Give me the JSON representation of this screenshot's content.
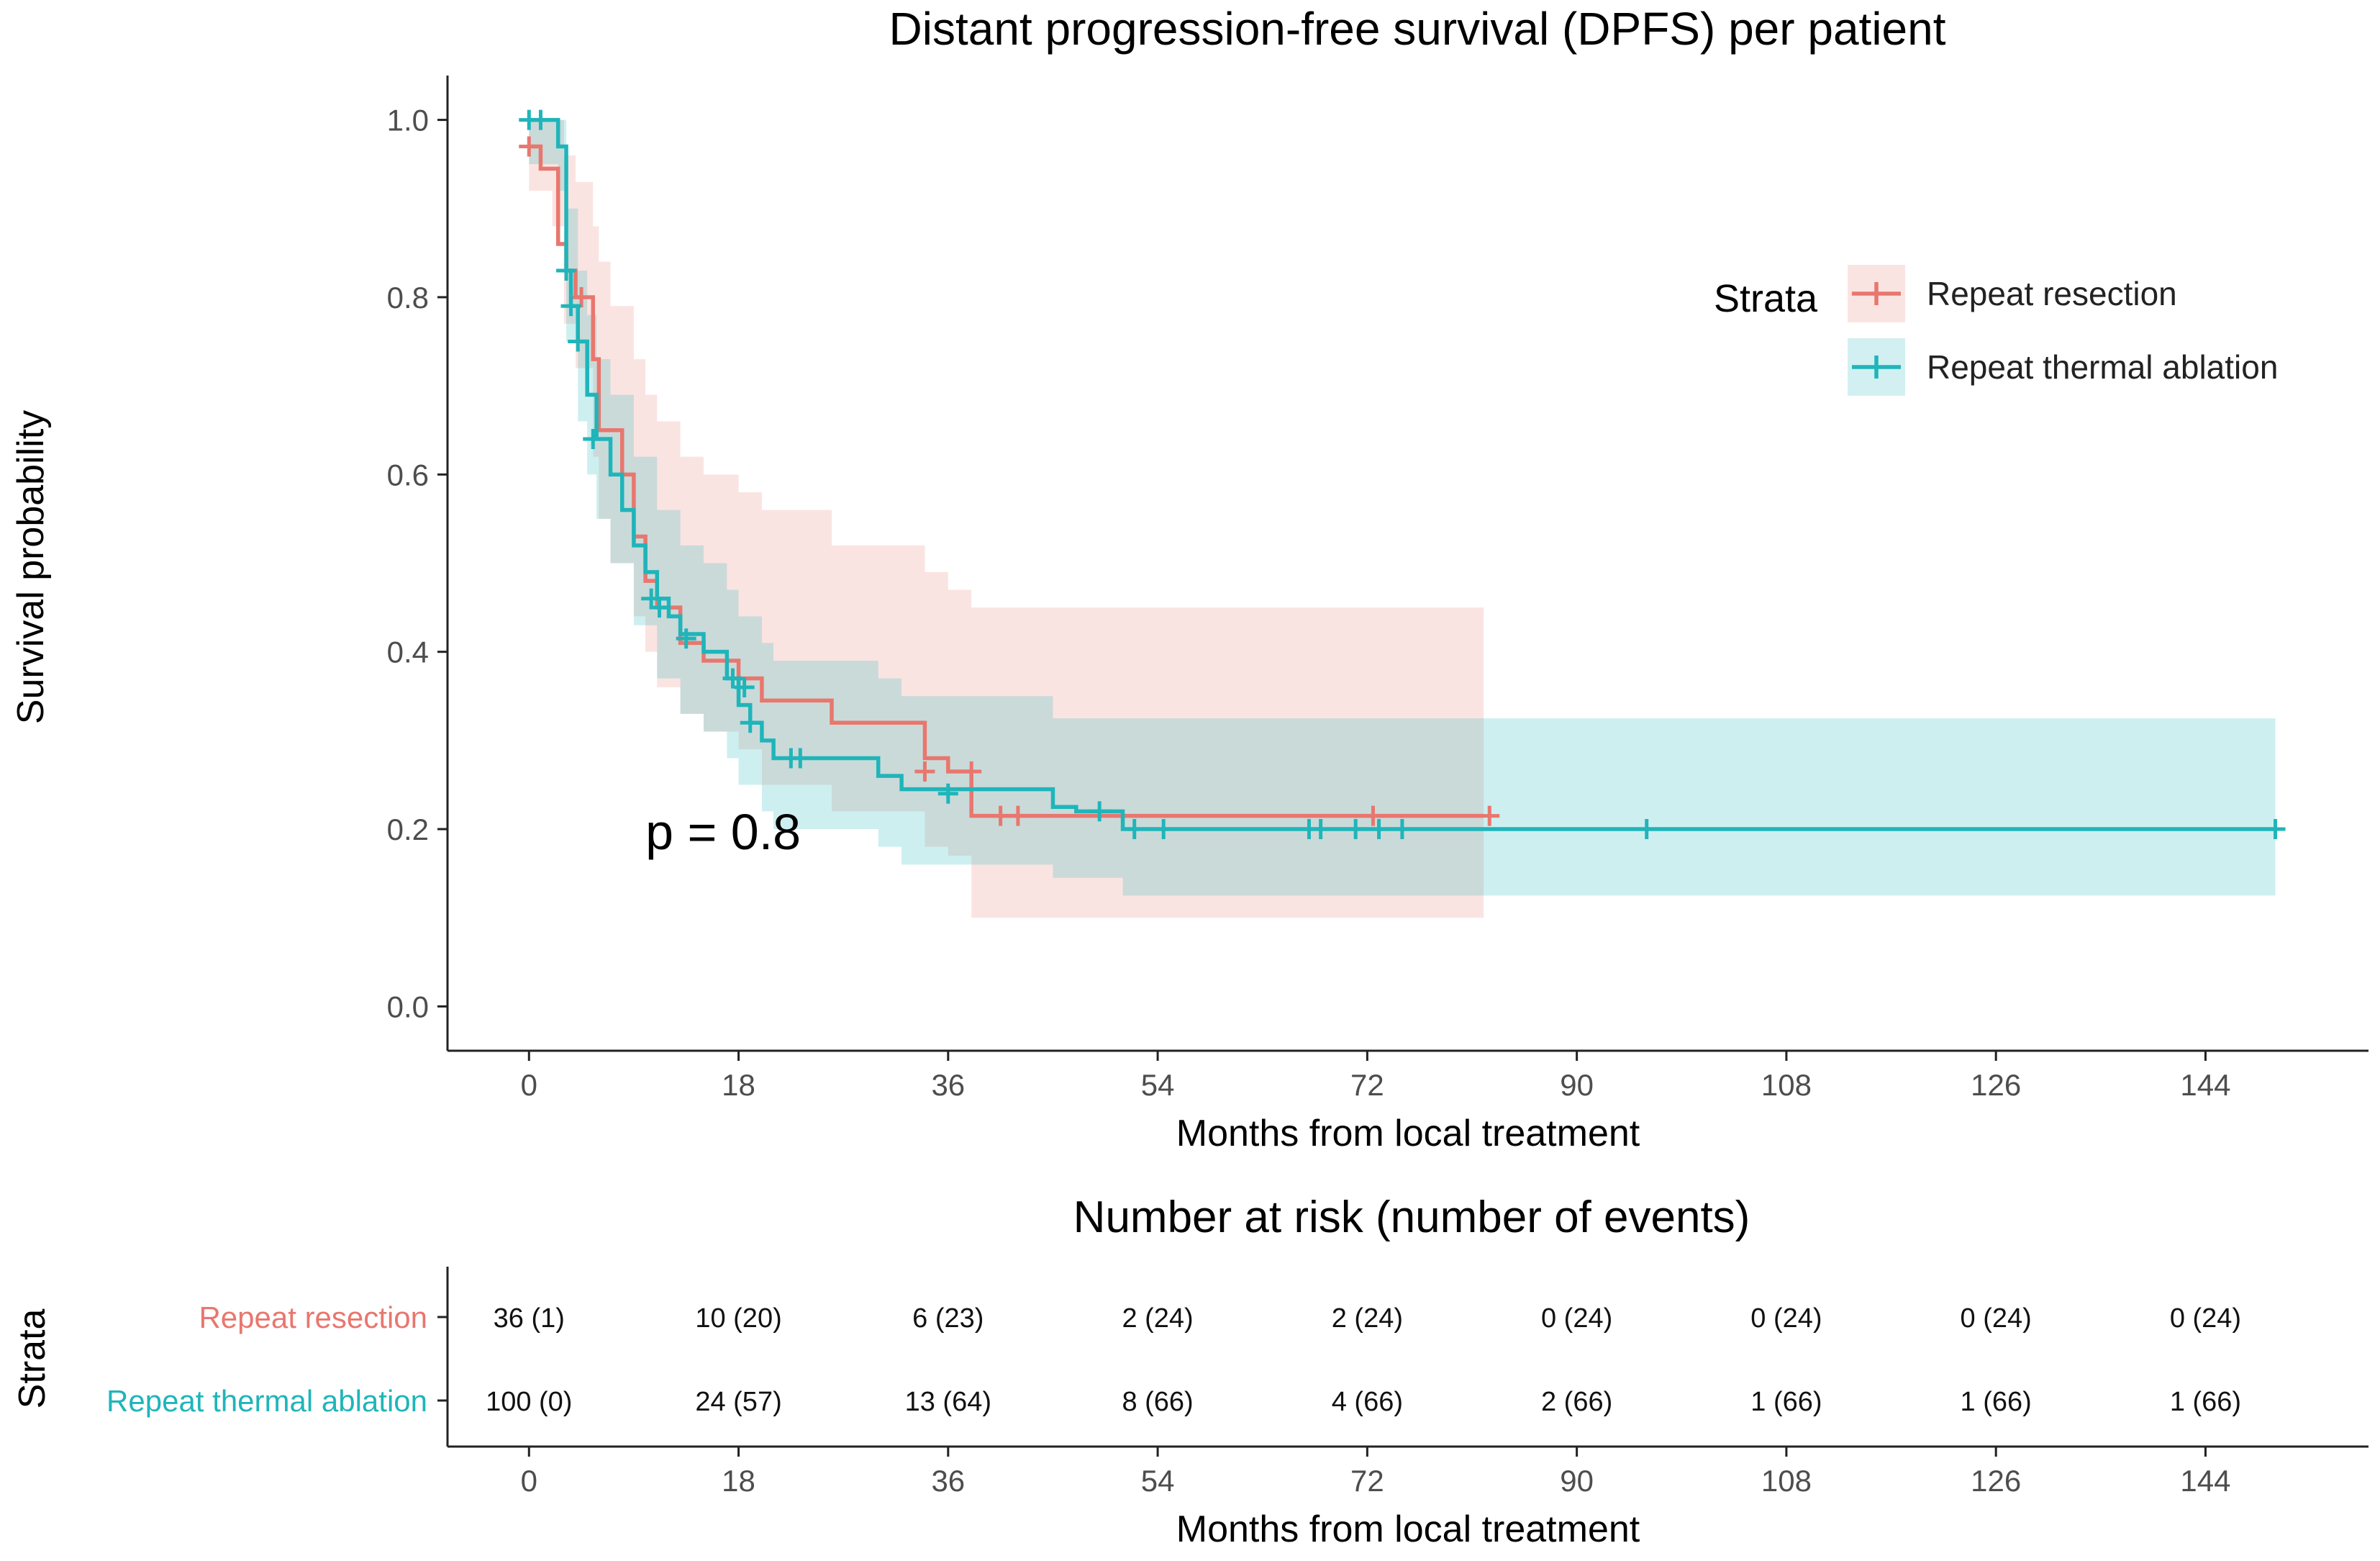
{
  "colors": {
    "resection": "#E8776E",
    "ablation": "#1FB5BA",
    "resection_band": "#FDE3E1",
    "ablation_band": "#CDEFF0",
    "axis": "#222222",
    "tick_label": "#4d4d4d"
  },
  "chart_data": [
    {
      "type": "line",
      "title": "Distant progression-free survival (DPFS) per patient",
      "xlabel": "Months from local treatment",
      "ylabel": "Survival probability",
      "xlim": [
        -7,
        158
      ],
      "ylim": [
        -0.05,
        1.05
      ],
      "xticks": [
        0,
        18,
        36,
        54,
        72,
        90,
        108,
        126,
        144
      ],
      "yticks": [
        0.0,
        0.2,
        0.4,
        0.6,
        0.8,
        1.0
      ],
      "ytick_labels": [
        "0.0",
        "0.2",
        "0.4",
        "0.6",
        "0.8",
        "1.0"
      ],
      "annotation": "p = 0.8",
      "annotation_pos": [
        10,
        0.2
      ],
      "legend": {
        "title": "Strata",
        "position": "top-right",
        "entries": [
          "Repeat resection",
          "Repeat thermal ablation"
        ]
      },
      "series": [
        {
          "name": "Repeat resection",
          "color_key": "resection",
          "steps": [
            [
              0,
              0.97
            ],
            [
              1,
              0.97
            ],
            [
              1,
              0.945
            ],
            [
              2.5,
              0.945
            ],
            [
              2.5,
              0.86
            ],
            [
              3.2,
              0.86
            ],
            [
              3.2,
              0.83
            ],
            [
              4,
              0.83
            ],
            [
              4,
              0.8
            ],
            [
              5.5,
              0.8
            ],
            [
              5.5,
              0.73
            ],
            [
              6,
              0.73
            ],
            [
              6,
              0.65
            ],
            [
              8,
              0.65
            ],
            [
              8,
              0.6
            ],
            [
              9,
              0.6
            ],
            [
              9,
              0.53
            ],
            [
              10,
              0.53
            ],
            [
              10,
              0.48
            ],
            [
              11,
              0.48
            ],
            [
              11,
              0.45
            ],
            [
              13,
              0.45
            ],
            [
              13,
              0.41
            ],
            [
              15,
              0.41
            ],
            [
              15,
              0.39
            ],
            [
              18,
              0.39
            ],
            [
              18,
              0.37
            ],
            [
              20,
              0.37
            ],
            [
              20,
              0.345
            ],
            [
              26,
              0.345
            ],
            [
              26,
              0.32
            ],
            [
              34,
              0.32
            ],
            [
              34,
              0.28
            ],
            [
              36,
              0.28
            ],
            [
              36,
              0.265
            ],
            [
              38,
              0.265
            ],
            [
              38,
              0.215
            ],
            [
              82,
              0.215
            ]
          ],
          "band": [
            [
              0,
              0.92,
              1.0
            ],
            [
              2,
              0.88,
              1.0
            ],
            [
              3,
              0.77,
              0.96
            ],
            [
              4,
              0.72,
              0.93
            ],
            [
              5.5,
              0.62,
              0.88
            ],
            [
              6,
              0.55,
              0.84
            ],
            [
              7,
              0.5,
              0.79
            ],
            [
              9,
              0.44,
              0.73
            ],
            [
              10,
              0.4,
              0.69
            ],
            [
              11,
              0.36,
              0.66
            ],
            [
              13,
              0.33,
              0.62
            ],
            [
              15,
              0.31,
              0.6
            ],
            [
              18,
              0.29,
              0.58
            ],
            [
              20,
              0.25,
              0.56
            ],
            [
              26,
              0.22,
              0.52
            ],
            [
              34,
              0.18,
              0.49
            ],
            [
              36,
              0.17,
              0.47
            ],
            [
              38,
              0.1,
              0.45
            ],
            [
              82,
              0.1,
              0.45
            ]
          ],
          "censors": [
            [
              0,
              0.97
            ],
            [
              4.5,
              0.8
            ],
            [
              34,
              0.265
            ],
            [
              38,
              0.265
            ],
            [
              40.5,
              0.215
            ],
            [
              42,
              0.215
            ],
            [
              72.5,
              0.215
            ],
            [
              82.5,
              0.215
            ]
          ]
        },
        {
          "name": "Repeat thermal ablation",
          "color_key": "ablation",
          "steps": [
            [
              0,
              1.0
            ],
            [
              2.5,
              1.0
            ],
            [
              2.5,
              0.97
            ],
            [
              3.2,
              0.97
            ],
            [
              3.2,
              0.83
            ],
            [
              3.6,
              0.83
            ],
            [
              3.6,
              0.79
            ],
            [
              4.2,
              0.79
            ],
            [
              4.2,
              0.75
            ],
            [
              5,
              0.75
            ],
            [
              5,
              0.69
            ],
            [
              5.8,
              0.69
            ],
            [
              5.8,
              0.64
            ],
            [
              7,
              0.64
            ],
            [
              7,
              0.6
            ],
            [
              8,
              0.6
            ],
            [
              8,
              0.56
            ],
            [
              9,
              0.56
            ],
            [
              9,
              0.52
            ],
            [
              10,
              0.52
            ],
            [
              10,
              0.49
            ],
            [
              11,
              0.49
            ],
            [
              11,
              0.46
            ],
            [
              12,
              0.46
            ],
            [
              12,
              0.44
            ],
            [
              13,
              0.44
            ],
            [
              13,
              0.42
            ],
            [
              15,
              0.42
            ],
            [
              15,
              0.4
            ],
            [
              17,
              0.4
            ],
            [
              17,
              0.37
            ],
            [
              18,
              0.37
            ],
            [
              18,
              0.34
            ],
            [
              19,
              0.34
            ],
            [
              19,
              0.32
            ],
            [
              20,
              0.32
            ],
            [
              20,
              0.3
            ],
            [
              21,
              0.3
            ],
            [
              21,
              0.28
            ],
            [
              30,
              0.28
            ],
            [
              30,
              0.26
            ],
            [
              32,
              0.26
            ],
            [
              32,
              0.245
            ],
            [
              45,
              0.245
            ],
            [
              45,
              0.225
            ],
            [
              47,
              0.225
            ],
            [
              47,
              0.22
            ],
            [
              51,
              0.22
            ],
            [
              51,
              0.2
            ],
            [
              150,
              0.2
            ]
          ],
          "band": [
            [
              0,
              0.95,
              1.0
            ],
            [
              2.5,
              0.92,
              1.0
            ],
            [
              3.2,
              0.75,
              0.9
            ],
            [
              4.2,
              0.66,
              0.83
            ],
            [
              5,
              0.6,
              0.78
            ],
            [
              5.8,
              0.55,
              0.73
            ],
            [
              7,
              0.5,
              0.69
            ],
            [
              9,
              0.43,
              0.62
            ],
            [
              11,
              0.37,
              0.56
            ],
            [
              13,
              0.33,
              0.52
            ],
            [
              15,
              0.31,
              0.5
            ],
            [
              17,
              0.28,
              0.47
            ],
            [
              18,
              0.25,
              0.44
            ],
            [
              20,
              0.22,
              0.41
            ],
            [
              21,
              0.2,
              0.39
            ],
            [
              30,
              0.18,
              0.37
            ],
            [
              32,
              0.16,
              0.35
            ],
            [
              45,
              0.145,
              0.325
            ],
            [
              51,
              0.125,
              0.325
            ],
            [
              150,
              0.125,
              0.325
            ]
          ],
          "censors": [
            [
              0,
              1.0
            ],
            [
              1,
              1.0
            ],
            [
              3.2,
              0.83
            ],
            [
              3.6,
              0.79
            ],
            [
              4.2,
              0.75
            ],
            [
              5.5,
              0.64
            ],
            [
              10.5,
              0.46
            ],
            [
              11.2,
              0.45
            ],
            [
              13.5,
              0.415
            ],
            [
              17.5,
              0.37
            ],
            [
              18.5,
              0.36
            ],
            [
              19,
              0.32
            ],
            [
              22.5,
              0.28
            ],
            [
              23.3,
              0.28
            ],
            [
              36,
              0.24
            ],
            [
              49,
              0.22
            ],
            [
              52,
              0.2
            ],
            [
              54.5,
              0.2
            ],
            [
              67,
              0.2
            ],
            [
              68,
              0.2
            ],
            [
              71,
              0.2
            ],
            [
              73,
              0.2
            ],
            [
              75,
              0.2
            ],
            [
              96,
              0.2
            ],
            [
              150,
              0.2
            ]
          ]
        }
      ]
    },
    {
      "type": "table",
      "title": "Number at risk (number of events)",
      "xlabel": "Months from local treatment",
      "ylabel": "Strata",
      "xlim": [
        -7,
        158
      ],
      "xticks": [
        0,
        18,
        36,
        54,
        72,
        90,
        108,
        126,
        144
      ],
      "rows": [
        {
          "name": "Repeat resection",
          "color_key": "resection",
          "values": [
            "36 (1)",
            "10 (20)",
            "6 (23)",
            "2 (24)",
            "2 (24)",
            "0 (24)",
            "0 (24)",
            "0 (24)",
            "0 (24)"
          ]
        },
        {
          "name": "Repeat thermal ablation",
          "color_key": "ablation",
          "values": [
            "100 (0)",
            "24 (57)",
            "13 (64)",
            "8 (66)",
            "4 (66)",
            "2 (66)",
            "1 (66)",
            "1 (66)",
            "1 (66)"
          ]
        }
      ]
    }
  ]
}
